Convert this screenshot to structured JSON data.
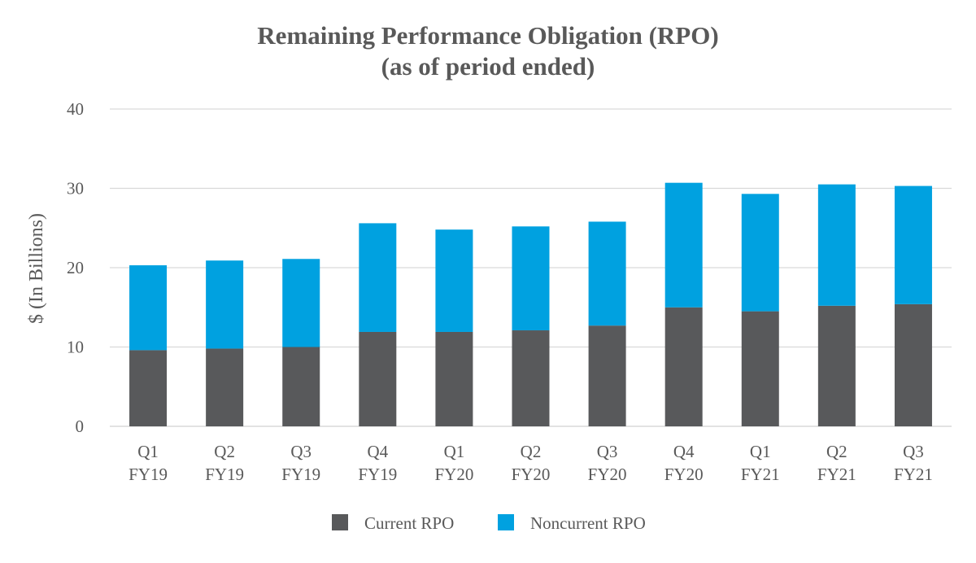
{
  "chart_data": {
    "type": "bar",
    "stacked": true,
    "title": [
      "Remaining Performance Obligation (RPO)",
      "(as of period ended)"
    ],
    "ylabel": "$ (In Billions)",
    "xlabel": "",
    "ylim": [
      0,
      40
    ],
    "yticks": [
      0,
      10,
      20,
      30,
      40
    ],
    "grid": true,
    "legend_position": "bottom",
    "categories": [
      [
        "Q1",
        "FY19"
      ],
      [
        "Q2",
        "FY19"
      ],
      [
        "Q3",
        "FY19"
      ],
      [
        "Q4",
        "FY19"
      ],
      [
        "Q1",
        "FY20"
      ],
      [
        "Q2",
        "FY20"
      ],
      [
        "Q3",
        "FY20"
      ],
      [
        "Q4",
        "FY20"
      ],
      [
        "Q1",
        "FY21"
      ],
      [
        "Q2",
        "FY21"
      ],
      [
        "Q3",
        "FY21"
      ]
    ],
    "series": [
      {
        "name": "Current RPO",
        "color": "#58595b",
        "values": [
          9.6,
          9.8,
          10.0,
          11.9,
          11.9,
          12.1,
          12.7,
          15.0,
          14.5,
          15.2,
          15.4
        ]
      },
      {
        "name": "Noncurrent RPO",
        "color": "#00a1e0",
        "values": [
          10.7,
          11.1,
          11.1,
          13.7,
          12.9,
          13.1,
          13.1,
          15.7,
          14.8,
          15.3,
          14.9
        ]
      }
    ]
  }
}
